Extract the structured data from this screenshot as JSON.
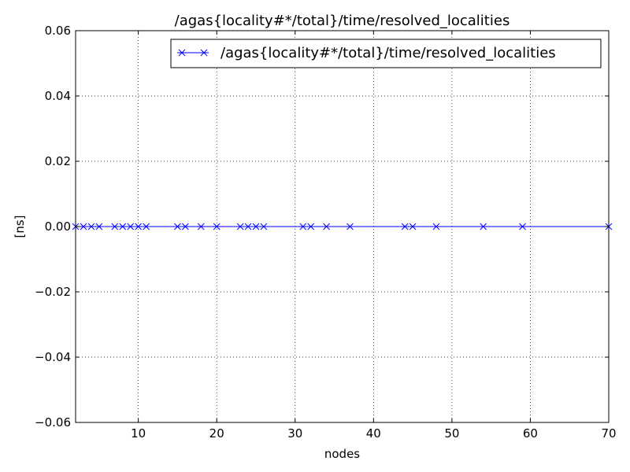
{
  "chart_data": {
    "type": "line",
    "title": "/agas{locality#*/total}/time/resolved_localities",
    "xlabel": "nodes",
    "ylabel": "[ns]",
    "xlim": [
      2,
      70
    ],
    "ylim": [
      -0.06,
      0.06
    ],
    "x_ticks": [
      10,
      20,
      30,
      40,
      50,
      60,
      70
    ],
    "y_ticks": [
      -0.06,
      -0.04,
      -0.02,
      0.0,
      0.02,
      0.04,
      0.06
    ],
    "x_tick_labels": [
      "10",
      "20",
      "30",
      "40",
      "50",
      "60",
      "70"
    ],
    "y_tick_labels": [
      "−0.06",
      "−0.04",
      "−0.02",
      "0.00",
      "0.02",
      "0.04",
      "0.06"
    ],
    "grid": true,
    "legend_position": "top-right",
    "series": [
      {
        "name": "/agas{locality#*/total}/time/resolved_localities",
        "color": "#0000ff",
        "marker": "x",
        "x": [
          2,
          3,
          4,
          5,
          7,
          8,
          9,
          10,
          11,
          15,
          16,
          18,
          20,
          23,
          24,
          25,
          26,
          31,
          32,
          34,
          37,
          44,
          45,
          48,
          54,
          59,
          70
        ],
        "y": [
          0,
          0,
          0,
          0,
          0,
          0,
          0,
          0,
          0,
          0,
          0,
          0,
          0,
          0,
          0,
          0,
          0,
          0,
          0,
          0,
          0,
          0,
          0,
          0,
          0,
          0,
          0
        ]
      }
    ]
  }
}
